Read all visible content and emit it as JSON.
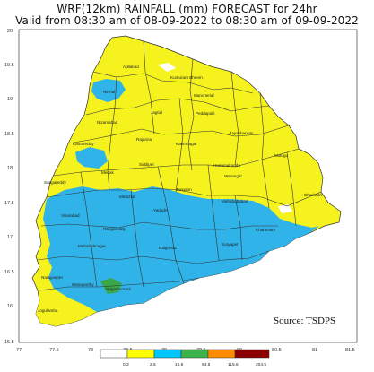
{
  "title_line1": "WRF(12km) RAINFALL (mm) FORECAST for 24hr",
  "title_line2": "Valid from 08:30 am of 08-09-2022 to 08:30 am of 09-09-2022",
  "source": "Source: TSDPS",
  "y_ticks": [
    "20",
    "19.5",
    "19",
    "18.5",
    "18",
    "17.5",
    "17",
    "16.5",
    "16",
    "15.5"
  ],
  "x_ticks": [
    "77",
    "77.5",
    "78",
    "78.5",
    "79",
    "79.5",
    "80",
    "80.5",
    "81",
    "81.5"
  ],
  "legend": {
    "thresholds": [
      "0.3",
      "2.5",
      "15.6",
      "64.5",
      "115.6",
      "204.5"
    ],
    "colors": [
      "#ffffff",
      "#ffff00",
      "#00c8ff",
      "#3cb34a",
      "#ff8c00",
      "#8b0000"
    ]
  },
  "map_colors": {
    "yellow": "#f5f21e",
    "blue": "#30b3e8",
    "green": "#3aa84a",
    "border": "#333333"
  },
  "districts": {
    "adilabad": "Adilabad",
    "kumuram_bheem": "Kumuram Bheem",
    "mancherial": "Mancherial",
    "nirmal": "Nirmal",
    "jagtial": "Jagtial",
    "peddapalli": "Peddapalli",
    "jayashankar": "Jayashankar",
    "nizamabad": "Nizamabad",
    "rajanna": "Rajanna",
    "karimnagar": "Karimnagar",
    "mulugu": "Mulugu",
    "kamareddy": "Kamareddy",
    "siddipet": "Siddipet",
    "hanumakonda": "Hanumakonda",
    "warangal": "Warangal",
    "medak": "Medak",
    "sangareddy": "Sangareddy",
    "jangaon": "Jangaon",
    "bhadradri": "Bhadradri",
    "medchal": "Medchal",
    "yadadri": "Yadadri",
    "mahabubabad": "Mahabubabad",
    "vikarabad": "Vikarabad",
    "rangareddy": "Rangareddy",
    "khammam": "Khammam",
    "suryapet": "Suryapet",
    "mahabubnagar": "Mahabubnagar",
    "nalgonda": "Nalgonda",
    "narayanpet": "Narayanpet",
    "wanaparthy": "Wanaparthy",
    "nagarkurnool": "Nagarkurnool",
    "jogulamba": "Jogulamba"
  }
}
